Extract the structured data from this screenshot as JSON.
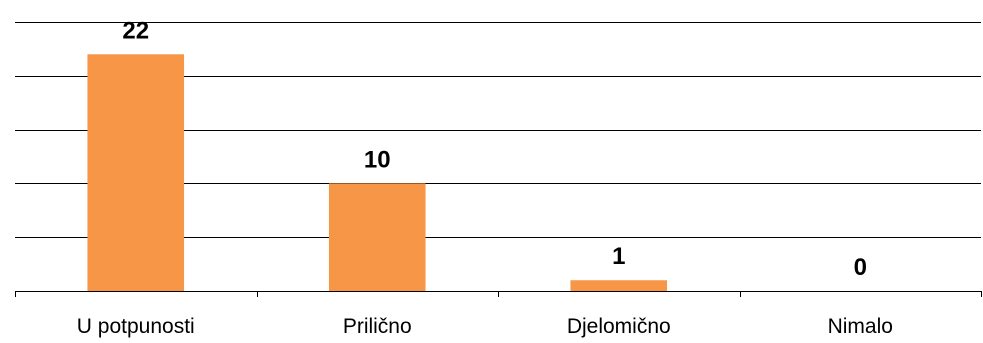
{
  "colors": {
    "bar": "#F79646",
    "grid": "#000000",
    "axis": "#000000",
    "text": "#000000",
    "background": "#FFFFFF"
  },
  "chart_data": {
    "type": "bar",
    "categories": [
      "U potpunosti",
      "Prilično",
      "Djelomično",
      "Nimalo"
    ],
    "values": [
      22,
      10,
      1,
      0
    ],
    "data_labels": [
      "22",
      "10",
      "1",
      "0"
    ],
    "title": "",
    "xlabel": "",
    "ylabel": "",
    "ylim": [
      0,
      25
    ],
    "y_tick_step": 5,
    "y_tick_labels_shown": false,
    "grid": true,
    "legend": "none"
  }
}
